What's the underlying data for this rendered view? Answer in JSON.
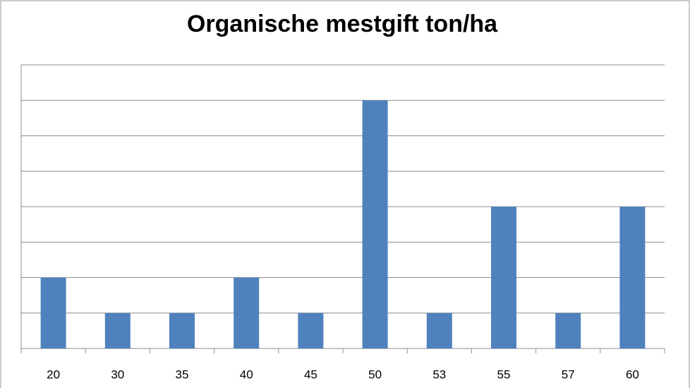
{
  "chart_data": {
    "type": "bar",
    "title": "Organische mestgift ton/ha",
    "categories": [
      "20",
      "30",
      "35",
      "40",
      "45",
      "50",
      "53",
      "55",
      "57",
      "60"
    ],
    "values": [
      2,
      1,
      1,
      2,
      1,
      7,
      1,
      4,
      1,
      4
    ],
    "color": "#4f81bd",
    "ylim": [
      0,
      8
    ],
    "yticks": [
      0,
      1,
      2,
      3,
      4,
      5,
      6,
      7,
      8
    ],
    "grid": true,
    "ytick_labels": false
  }
}
